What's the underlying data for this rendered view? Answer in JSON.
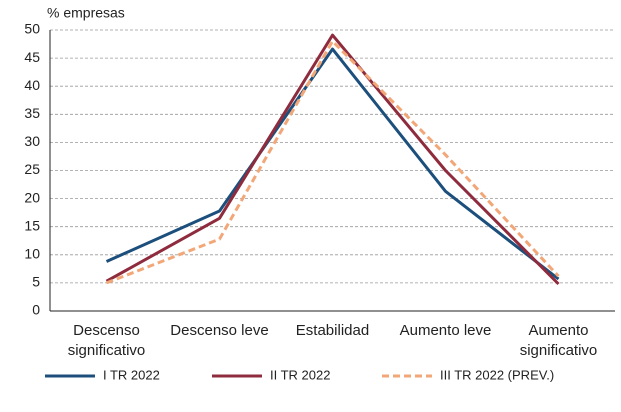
{
  "chart_data": {
    "type": "line",
    "ylabel": "% empresas",
    "categories": [
      "Descenso significativo",
      "Descenso leve",
      "Estabilidad",
      "Aumento leve",
      "Aumento significativo"
    ],
    "series": [
      {
        "name": "I TR 2022",
        "color": "#1c4f7c",
        "values": [
          8.8,
          17.8,
          46.6,
          21.3,
          5.7
        ]
      },
      {
        "name": "II TR 2022",
        "color": "#8e2c3e",
        "values": [
          5.3,
          16.5,
          49.1,
          25.0,
          4.8
        ]
      },
      {
        "name": "III TR 2022 (PREV.)",
        "color": "#f2a779",
        "dash": true,
        "values": [
          5.0,
          12.8,
          48.0,
          27.8,
          6.2
        ]
      }
    ],
    "ylim": [
      0,
      50
    ],
    "yticks": [
      0,
      5,
      10,
      15,
      20,
      25,
      30,
      35,
      40,
      45,
      50
    ],
    "grid": true
  }
}
